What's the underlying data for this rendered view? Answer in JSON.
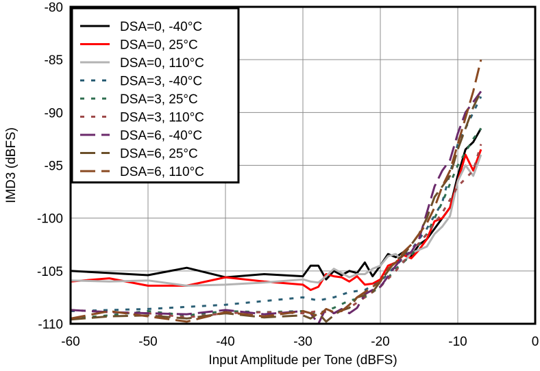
{
  "chart_data": {
    "type": "line",
    "xlabel": "Input Amplitude per Tone (dBFS)",
    "ylabel": "IMD3 (dBFS)",
    "xlim": [
      -60,
      0
    ],
    "ylim": [
      -110,
      -80
    ],
    "xticks": [
      -60,
      -50,
      -40,
      -30,
      -20,
      -10,
      0
    ],
    "yticks": [
      -80,
      -85,
      -90,
      -95,
      -100,
      -105,
      -110
    ],
    "grid": true,
    "legend_position": "top-left",
    "series": [
      {
        "name": "DSA=0, -40°C",
        "color": "#000000",
        "dash": "solid",
        "points": [
          [
            -60,
            -105.0
          ],
          [
            -55,
            -105.2
          ],
          [
            -50,
            -105.4
          ],
          [
            -45,
            -104.7
          ],
          [
            -40,
            -105.6
          ],
          [
            -35,
            -105.3
          ],
          [
            -30,
            -105.5
          ],
          [
            -29,
            -104.5
          ],
          [
            -28,
            -104.5
          ],
          [
            -27,
            -105.8
          ],
          [
            -26,
            -105.0
          ],
          [
            -25,
            -105.4
          ],
          [
            -24,
            -105.0
          ],
          [
            -23,
            -105.2
          ],
          [
            -22,
            -104.2
          ],
          [
            -21,
            -105.5
          ],
          [
            -20,
            -104.5
          ],
          [
            -19,
            -103.4
          ],
          [
            -18,
            -103.7
          ],
          [
            -17,
            -103.2
          ],
          [
            -16,
            -103.6
          ],
          [
            -15,
            -102.5
          ],
          [
            -14,
            -102.0
          ],
          [
            -13,
            -101.0
          ],
          [
            -12,
            -100.0
          ],
          [
            -11,
            -99.0
          ],
          [
            -10,
            -96.0
          ],
          [
            -9,
            -93.5
          ],
          [
            -8,
            -92.8
          ],
          [
            -7,
            -91.5
          ]
        ]
      },
      {
        "name": "DSA=0, 25°C",
        "color": "#ff0000",
        "dash": "solid",
        "points": [
          [
            -60,
            -106.0
          ],
          [
            -55,
            -105.7
          ],
          [
            -50,
            -106.4
          ],
          [
            -45,
            -106.4
          ],
          [
            -40,
            -105.6
          ],
          [
            -35,
            -106.0
          ],
          [
            -30,
            -106.3
          ],
          [
            -29,
            -106.8
          ],
          [
            -28,
            -106.5
          ],
          [
            -27,
            -105.3
          ],
          [
            -26,
            -105.5
          ],
          [
            -25,
            -105.6
          ],
          [
            -24,
            -106.0
          ],
          [
            -23,
            -105.5
          ],
          [
            -22,
            -106.3
          ],
          [
            -21,
            -106.2
          ],
          [
            -20,
            -105.8
          ],
          [
            -19,
            -104.5
          ],
          [
            -18,
            -104.2
          ],
          [
            -17,
            -103.5
          ],
          [
            -16,
            -103.8
          ],
          [
            -15,
            -103.0
          ],
          [
            -14,
            -102.0
          ],
          [
            -13,
            -100.3
          ],
          [
            -12,
            -100.0
          ],
          [
            -11,
            -99.0
          ],
          [
            -10,
            -96.5
          ],
          [
            -9,
            -94.0
          ],
          [
            -8,
            -95.5
          ],
          [
            -7,
            -93.5
          ]
        ]
      },
      {
        "name": "DSA=0, 110°C",
        "color": "#b3b3b3",
        "dash": "solid",
        "points": [
          [
            -60,
            -105.9
          ],
          [
            -55,
            -106.0
          ],
          [
            -50,
            -105.9
          ],
          [
            -45,
            -106.4
          ],
          [
            -40,
            -106.3
          ],
          [
            -35,
            -106.1
          ],
          [
            -30,
            -105.8
          ],
          [
            -29,
            -106.0
          ],
          [
            -28,
            -106.1
          ],
          [
            -27,
            -105.5
          ],
          [
            -26,
            -104.8
          ],
          [
            -25,
            -105.2
          ],
          [
            -24,
            -105.6
          ],
          [
            -23,
            -105.3
          ],
          [
            -22,
            -105.3
          ],
          [
            -21,
            -104.8
          ],
          [
            -20,
            -104.5
          ],
          [
            -19,
            -103.6
          ],
          [
            -18,
            -103.4
          ],
          [
            -17,
            -104.2
          ],
          [
            -16,
            -103.3
          ],
          [
            -15,
            -103.0
          ],
          [
            -14,
            -102.7
          ],
          [
            -13,
            -101.5
          ],
          [
            -12,
            -100.8
          ],
          [
            -11,
            -99.8
          ],
          [
            -10,
            -96.5
          ],
          [
            -9,
            -95.0
          ],
          [
            -8,
            -96.0
          ],
          [
            -7,
            -94.0
          ]
        ]
      },
      {
        "name": "DSA=3, -40°C",
        "color": "#2b5f75",
        "dash": "dot",
        "points": [
          [
            -60,
            -108.8
          ],
          [
            -50,
            -108.6
          ],
          [
            -40,
            -108.2
          ],
          [
            -30,
            -107.5
          ],
          [
            -28,
            -107.8
          ],
          [
            -26,
            -107.5
          ],
          [
            -24,
            -107.0
          ],
          [
            -22,
            -106.8
          ],
          [
            -20,
            -106.0
          ],
          [
            -18,
            -104.5
          ],
          [
            -16,
            -103.0
          ],
          [
            -14,
            -101.0
          ],
          [
            -12,
            -98.5
          ],
          [
            -10,
            -93.0
          ],
          [
            -8,
            -90.0
          ],
          [
            -7,
            -88.5
          ]
        ]
      },
      {
        "name": "DSA=3, 25°C",
        "color": "#2e6e4e",
        "dash": "dot",
        "points": [
          [
            -60,
            -109.5
          ],
          [
            -55,
            -109.2
          ],
          [
            -50,
            -108.8
          ],
          [
            -45,
            -109.2
          ],
          [
            -40,
            -108.8
          ],
          [
            -35,
            -108.9
          ],
          [
            -30,
            -108.8
          ],
          [
            -28,
            -109.0
          ],
          [
            -26,
            -108.5
          ],
          [
            -24,
            -107.8
          ],
          [
            -22,
            -107.5
          ],
          [
            -20,
            -106.5
          ],
          [
            -18,
            -104.8
          ],
          [
            -16,
            -103.5
          ],
          [
            -14,
            -101.5
          ],
          [
            -12,
            -98.5
          ],
          [
            -10,
            -95.0
          ],
          [
            -8,
            -92.5
          ],
          [
            -7,
            -91.5
          ]
        ]
      },
      {
        "name": "DSA=3, 110°C",
        "color": "#9e4a4a",
        "dash": "dot",
        "points": [
          [
            -60,
            -108.7
          ],
          [
            -55,
            -108.9
          ],
          [
            -50,
            -109.0
          ],
          [
            -45,
            -109.4
          ],
          [
            -40,
            -109.0
          ],
          [
            -35,
            -108.9
          ],
          [
            -30,
            -109.0
          ],
          [
            -28,
            -108.8
          ],
          [
            -26,
            -109.0
          ],
          [
            -24,
            -108.5
          ],
          [
            -22,
            -107.5
          ],
          [
            -20,
            -106.5
          ],
          [
            -18,
            -105.0
          ],
          [
            -16,
            -103.2
          ],
          [
            -14,
            -101.5
          ],
          [
            -12,
            -99.5
          ],
          [
            -10,
            -97.0
          ],
          [
            -8,
            -95.5
          ],
          [
            -7,
            -93.0
          ]
        ]
      },
      {
        "name": "DSA=6, -40°C",
        "color": "#6b2a6b",
        "dash": "long",
        "points": [
          [
            -60,
            -108.7
          ],
          [
            -55,
            -108.9
          ],
          [
            -50,
            -109.0
          ],
          [
            -45,
            -109.1
          ],
          [
            -40,
            -108.7
          ],
          [
            -35,
            -109.1
          ],
          [
            -30,
            -108.8
          ],
          [
            -29,
            -109.0
          ],
          [
            -28,
            -110.0
          ],
          [
            -27,
            -108.5
          ],
          [
            -26,
            -109.0
          ],
          [
            -25,
            -108.6
          ],
          [
            -24,
            -109.0
          ],
          [
            -23,
            -108.5
          ],
          [
            -22,
            -107.2
          ],
          [
            -21,
            -106.8
          ],
          [
            -20,
            -106.5
          ],
          [
            -19,
            -105.5
          ],
          [
            -18,
            -104.5
          ],
          [
            -17,
            -103.6
          ],
          [
            -16,
            -103.2
          ],
          [
            -15,
            -102.0
          ],
          [
            -14,
            -99.5
          ],
          [
            -13,
            -97.0
          ],
          [
            -12,
            -95.5
          ],
          [
            -11,
            -94.5
          ],
          [
            -10,
            -92.0
          ],
          [
            -9,
            -90.0
          ],
          [
            -8,
            -89.0
          ],
          [
            -7,
            -88.0
          ]
        ]
      },
      {
        "name": "DSA=6, 25°C",
        "color": "#6b4f2a",
        "dash": "long",
        "points": [
          [
            -60,
            -109.6
          ],
          [
            -55,
            -109.3
          ],
          [
            -50,
            -109.2
          ],
          [
            -45,
            -109.5
          ],
          [
            -40,
            -109.0
          ],
          [
            -35,
            -109.4
          ],
          [
            -30,
            -109.2
          ],
          [
            -29,
            -109.5
          ],
          [
            -28,
            -109.0
          ],
          [
            -27,
            -109.8
          ],
          [
            -26,
            -109.2
          ],
          [
            -25,
            -108.7
          ],
          [
            -24,
            -108.5
          ],
          [
            -23,
            -107.5
          ],
          [
            -22,
            -107.3
          ],
          [
            -21,
            -107.0
          ],
          [
            -20,
            -106.0
          ],
          [
            -19,
            -105.0
          ],
          [
            -18,
            -104.0
          ],
          [
            -17,
            -103.5
          ],
          [
            -16,
            -102.5
          ],
          [
            -15,
            -101.5
          ],
          [
            -14,
            -100.0
          ],
          [
            -13,
            -98.0
          ],
          [
            -12,
            -97.0
          ],
          [
            -11,
            -96.0
          ],
          [
            -10,
            -93.5
          ],
          [
            -9,
            -91.5
          ],
          [
            -8,
            -89.5
          ],
          [
            -7,
            -88.0
          ]
        ]
      },
      {
        "name": "DSA=6, 110°C",
        "color": "#8a4a22",
        "dash": "long",
        "points": [
          [
            -60,
            -109.5
          ],
          [
            -55,
            -108.8
          ],
          [
            -50,
            -109.3
          ],
          [
            -45,
            -109.8
          ],
          [
            -40,
            -108.9
          ],
          [
            -35,
            -109.3
          ],
          [
            -30,
            -108.8
          ],
          [
            -29,
            -109.0
          ],
          [
            -28,
            -109.3
          ],
          [
            -27,
            -108.6
          ],
          [
            -26,
            -108.9
          ],
          [
            -25,
            -108.8
          ],
          [
            -24,
            -108.2
          ],
          [
            -23,
            -107.5
          ],
          [
            -22,
            -107.0
          ],
          [
            -21,
            -106.5
          ],
          [
            -20,
            -106.0
          ],
          [
            -19,
            -104.8
          ],
          [
            -18,
            -104.2
          ],
          [
            -17,
            -103.2
          ],
          [
            -16,
            -102.5
          ],
          [
            -15,
            -101.5
          ],
          [
            -14,
            -100.5
          ],
          [
            -13,
            -99.0
          ],
          [
            -12,
            -97.0
          ],
          [
            -11,
            -95.5
          ],
          [
            -10,
            -93.0
          ],
          [
            -9,
            -90.5
          ],
          [
            -8,
            -88.0
          ],
          [
            -7,
            -85.0
          ]
        ]
      }
    ]
  }
}
